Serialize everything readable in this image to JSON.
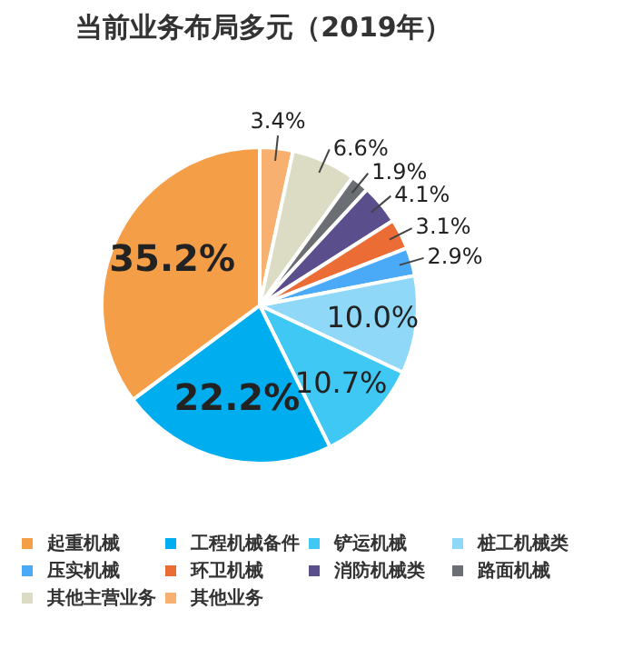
{
  "chart_data": {
    "type": "pie",
    "title": "当前业务布局多元（2019年）",
    "categories": [
      "起重机械",
      "工程机械备件",
      "铲运机械",
      "桩工机械类",
      "压实机械",
      "环卫机械",
      "消防机械类",
      "路面机械",
      "其他主营业务",
      "其他业务"
    ],
    "values": [
      35.2,
      22.2,
      10.7,
      10.0,
      2.9,
      3.1,
      4.1,
      1.9,
      6.6,
      3.4
    ],
    "colors": [
      "#f59e48",
      "#00aeef",
      "#40c8f4",
      "#8fd8f8",
      "#4aaaf7",
      "#ec6c36",
      "#5a4e8c",
      "#6b6e73",
      "#dbdcc3",
      "#f8b070"
    ],
    "value_labels": [
      "35.2%",
      "22.2%",
      "10.7%",
      "10.0%",
      "2.9%",
      "3.1%",
      "4.1%",
      "1.9%",
      "6.6%",
      "3.4%"
    ],
    "legend": "bottom"
  }
}
